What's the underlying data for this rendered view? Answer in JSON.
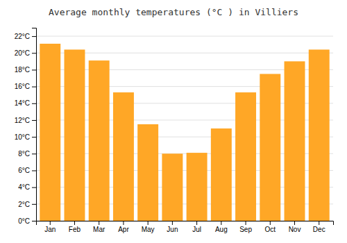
{
  "chart_data": {
    "type": "bar",
    "title": "Average monthly temperatures (°C ) in Villiers",
    "categories": [
      "Jan",
      "Feb",
      "Mar",
      "Apr",
      "May",
      "Jun",
      "Jul",
      "Aug",
      "Sep",
      "Oct",
      "Nov",
      "Dec"
    ],
    "values": [
      21.1,
      20.4,
      19.1,
      15.3,
      11.5,
      8.0,
      8.1,
      11.0,
      15.3,
      17.5,
      19.0,
      20.4
    ],
    "color": "#FFA726",
    "ylim": [
      0,
      23
    ],
    "yticks": [
      {
        "value": 0,
        "label": "0°C"
      },
      {
        "value": 2,
        "label": "2°C"
      },
      {
        "value": 4,
        "label": "4°C"
      },
      {
        "value": 6,
        "label": "6°C"
      },
      {
        "value": 8,
        "label": "8°C"
      },
      {
        "value": 10,
        "label": "10°C"
      },
      {
        "value": 12,
        "label": "12°C"
      },
      {
        "value": 14,
        "label": "14°C"
      },
      {
        "value": 16,
        "label": "16°C"
      },
      {
        "value": 18,
        "label": "18°C"
      },
      {
        "value": 20,
        "label": "20°C"
      },
      {
        "value": 22,
        "label": "22°C"
      }
    ],
    "grid": true
  }
}
